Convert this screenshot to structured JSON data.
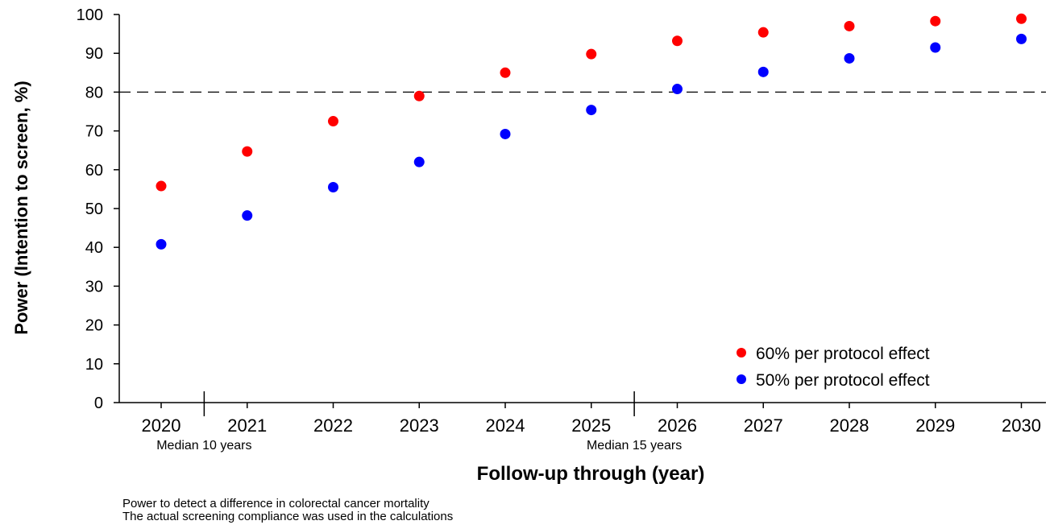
{
  "chart_data": {
    "type": "scatter",
    "title": "",
    "xlabel": "Follow-up through (year)",
    "ylabel": "Power (Intention to screen, %)",
    "categories": [
      "2020",
      "2021",
      "2022",
      "2023",
      "2024",
      "2025",
      "2026",
      "2027",
      "2028",
      "2029",
      "2030"
    ],
    "ylim": [
      0,
      100
    ],
    "yticks": [
      0,
      10,
      20,
      30,
      40,
      50,
      60,
      70,
      80,
      90,
      100
    ],
    "reference_line": {
      "y": 80,
      "style": "dashed"
    },
    "x_annotations": [
      {
        "text": "Median 10 years",
        "between": [
          "2020",
          "2021"
        ]
      },
      {
        "text": "Median 15 years",
        "between": [
          "2025",
          "2026"
        ]
      }
    ],
    "series": [
      {
        "name": "60% per protocol effect",
        "color": "#ff0000",
        "values": [
          55.8,
          64.7,
          72.5,
          79.0,
          85.0,
          89.8,
          93.2,
          95.4,
          97.0,
          98.3,
          98.9
        ]
      },
      {
        "name": "50% per protocol effect",
        "color": "#0000ff",
        "values": [
          40.8,
          48.2,
          55.5,
          62.0,
          69.2,
          75.4,
          80.8,
          85.2,
          88.7,
          91.5,
          93.7
        ]
      }
    ],
    "legend_position": "bottom-right",
    "grid": false
  },
  "notes": [
    "Power to detect a difference in colorectal cancer mortality",
    "The actual screening compliance was used in the calculations"
  ]
}
